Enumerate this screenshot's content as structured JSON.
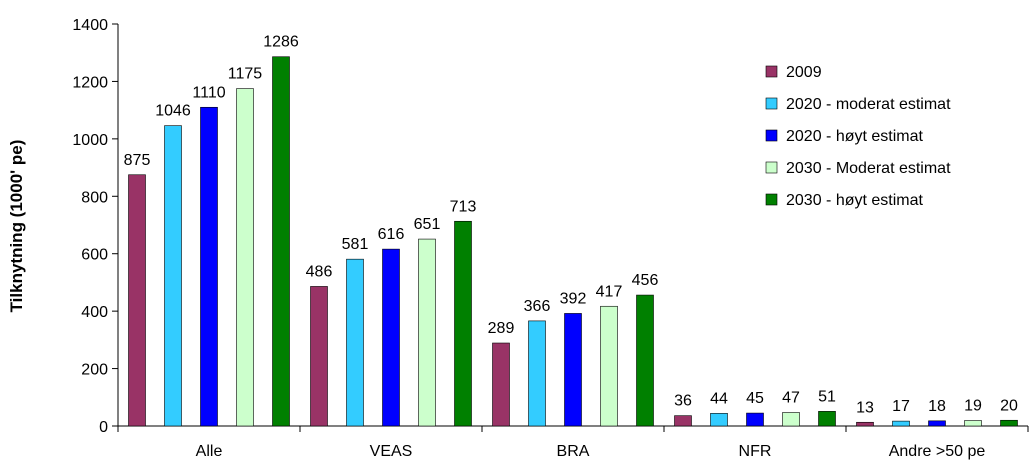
{
  "chart_data": {
    "type": "bar",
    "title": "",
    "xlabel": "",
    "ylabel": "Tilknytning (1000' pe)",
    "ylim": [
      0,
      1400
    ],
    "yticks": [
      0,
      200,
      400,
      600,
      800,
      1000,
      1200,
      1400
    ],
    "grid": false,
    "legend_position": "right",
    "categories": [
      "Alle",
      "VEAS",
      "BRA",
      "NFR",
      "Andre >50 pe"
    ],
    "series": [
      {
        "name": "2009",
        "color": "#993366",
        "values": [
          875,
          486,
          289,
          36,
          13
        ]
      },
      {
        "name": "2020 - moderat estimat",
        "color": "#33CCFF",
        "values": [
          1046,
          581,
          366,
          44,
          17
        ]
      },
      {
        "name": "2020 - høyt estimat",
        "color": "#0000FF",
        "values": [
          1110,
          616,
          392,
          45,
          18
        ]
      },
      {
        "name": "2030 - Moderat estimat",
        "color": "#CCFFCC",
        "values": [
          1175,
          651,
          417,
          47,
          19
        ]
      },
      {
        "name": "2030 - høyt estimat",
        "color": "#008000",
        "values": [
          1286,
          713,
          456,
          51,
          20
        ]
      }
    ]
  }
}
